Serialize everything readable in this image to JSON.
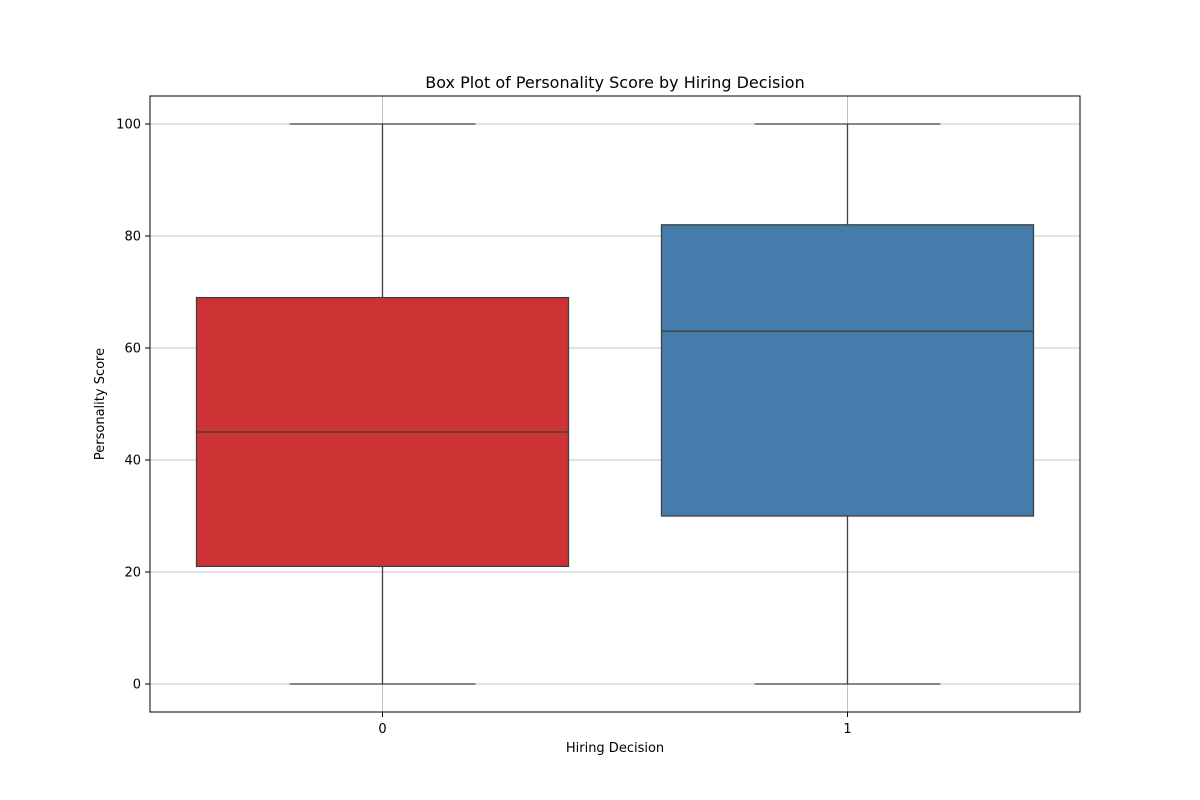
{
  "chart_data": {
    "type": "box",
    "title": "Box Plot of Personality Score by Hiring Decision",
    "xlabel": "Hiring Decision",
    "ylabel": "Personality Score",
    "categories": [
      "0",
      "1"
    ],
    "ylim": [
      -5,
      105
    ],
    "yticks": [
      0,
      20,
      40,
      60,
      80,
      100
    ],
    "grid": true,
    "boxes": [
      {
        "category": "0",
        "min": 0,
        "q1": 21,
        "median": 45,
        "q3": 69,
        "max": 100,
        "color": "#cd3334"
      },
      {
        "category": "1",
        "min": 0,
        "q1": 30,
        "median": 63,
        "q3": 82,
        "max": 100,
        "color": "#467cab"
      }
    ]
  }
}
